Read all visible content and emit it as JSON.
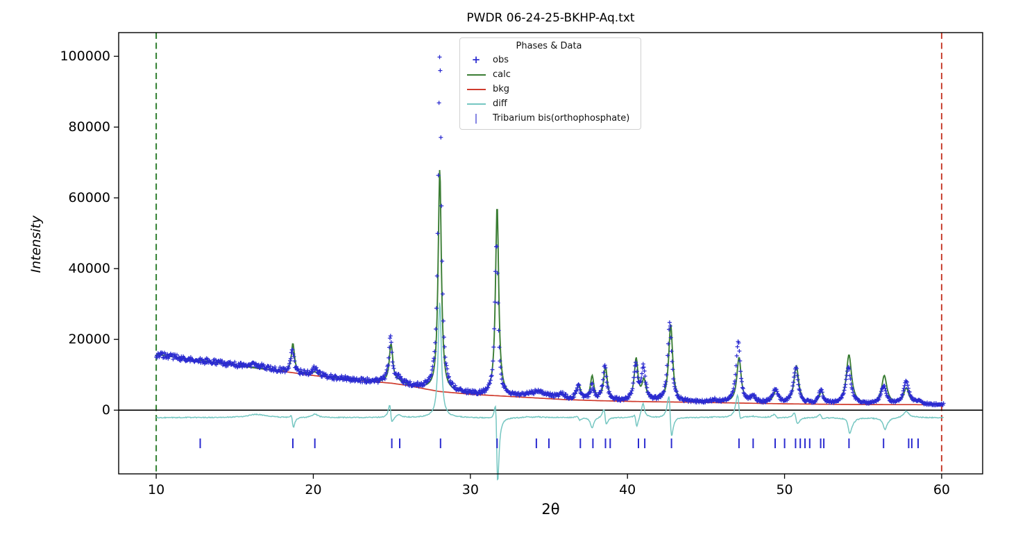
{
  "window": {
    "background": "#ffffff"
  },
  "chart_data": {
    "type": "line",
    "subtype": "powder-diffraction-rietveld",
    "title": "PWDR 06-24-25-BKHP-Aq.txt",
    "xlabel": "2θ",
    "ylabel": "Intensity",
    "xlim": [
      7.61,
      62.61
    ],
    "ylim": [
      -18000,
      106700
    ],
    "x_ticks": [
      10,
      20,
      30,
      40,
      50,
      60
    ],
    "y_ticks": [
      0,
      20000,
      40000,
      60000,
      80000,
      100000
    ],
    "grid": false,
    "data_range": [
      10.0,
      60.15
    ],
    "limit_lines": {
      "lower": 10.0,
      "upper": 60.0
    },
    "diff_offset": -2100,
    "zero_line": 0,
    "series": [
      {
        "name": "obs",
        "style": "plus-markers",
        "color": "#2b2bd0"
      },
      {
        "name": "calc",
        "style": "line",
        "color": "#3a7d33"
      },
      {
        "name": "bkg",
        "style": "line",
        "color": "#cf3b2d"
      },
      {
        "name": "diff",
        "style": "line",
        "color": "#74c6c1"
      }
    ],
    "background_points": [
      [
        10,
        15800
      ],
      [
        11,
        15100
      ],
      [
        12,
        14400
      ],
      [
        13,
        13900
      ],
      [
        14,
        13300
      ],
      [
        15,
        12700
      ],
      [
        16,
        12100
      ],
      [
        17,
        11500
      ],
      [
        18,
        11000
      ],
      [
        19,
        10400
      ],
      [
        20,
        9800
      ],
      [
        21,
        9300
      ],
      [
        22,
        8800
      ],
      [
        23,
        8400
      ],
      [
        24,
        8000
      ],
      [
        25,
        7600
      ],
      [
        26,
        7000
      ],
      [
        27,
        6100
      ],
      [
        28,
        5300
      ],
      [
        29,
        4900
      ],
      [
        30,
        4500
      ],
      [
        31,
        4250
      ],
      [
        32,
        4000
      ],
      [
        33,
        3750
      ],
      [
        34,
        3500
      ],
      [
        35,
        3250
      ],
      [
        36,
        3000
      ],
      [
        37,
        2850
      ],
      [
        38,
        2700
      ],
      [
        39,
        2600
      ],
      [
        40,
        2500
      ],
      [
        41,
        2420
      ],
      [
        42,
        2350
      ],
      [
        43,
        2300
      ],
      [
        44,
        2250
      ],
      [
        45,
        2170
      ],
      [
        46,
        2100
      ],
      [
        47,
        2020
      ],
      [
        48,
        1950
      ],
      [
        49,
        1870
      ],
      [
        50,
        1800
      ],
      [
        51,
        1750
      ],
      [
        52,
        1700
      ],
      [
        53,
        1660
      ],
      [
        54,
        1620
      ],
      [
        55,
        1600
      ],
      [
        56,
        1580
      ],
      [
        57,
        1570
      ],
      [
        58,
        1560
      ],
      [
        59,
        1555
      ],
      [
        60.2,
        1550
      ]
    ],
    "peaks": [
      {
        "pos": 16.4,
        "w": 0.7,
        "calc": 0,
        "obs": 900,
        "shift": 0
      },
      {
        "pos": 18.7,
        "w": 0.12,
        "calc": 8300,
        "obs": 6600,
        "shift": -0.04
      },
      {
        "pos": 20.1,
        "w": 0.22,
        "calc": 1000,
        "obs": 2000,
        "shift": 0
      },
      {
        "pos": 24.95,
        "w": 0.13,
        "calc": 11100,
        "obs": 12500,
        "shift": -0.04
      },
      {
        "pos": 25.45,
        "w": 0.2,
        "calc": 600,
        "obs": 1300,
        "shift": 0
      },
      {
        "pos": 28.05,
        "w": 0.12,
        "calc": 62900,
        "obs": 95700,
        "shift": 0
      },
      {
        "pos": 31.7,
        "w": 0.12,
        "calc": 53900,
        "obs": 43600,
        "shift": -0.04
      },
      {
        "pos": 33.6,
        "w": 0.3,
        "calc": 700,
        "obs": 900,
        "shift": 0
      },
      {
        "pos": 34.3,
        "w": 0.3,
        "calc": 1500,
        "obs": 1700,
        "shift": 0
      },
      {
        "pos": 35.0,
        "w": 0.3,
        "calc": 800,
        "obs": 800,
        "shift": 0
      },
      {
        "pos": 35.85,
        "w": 0.25,
        "calc": 1200,
        "obs": 1300,
        "shift": 0
      },
      {
        "pos": 36.9,
        "w": 0.15,
        "calc": 3900,
        "obs": 3700,
        "shift": -0.03
      },
      {
        "pos": 37.75,
        "w": 0.13,
        "calc": 6600,
        "obs": 3700,
        "shift": 0
      },
      {
        "pos": 38.6,
        "w": 0.14,
        "calc": 9300,
        "obs": 9700,
        "shift": -0.05
      },
      {
        "pos": 40.55,
        "w": 0.14,
        "calc": 11800,
        "obs": 10100,
        "shift": -0.03
      },
      {
        "pos": 41.05,
        "w": 0.15,
        "calc": 5600,
        "obs": 9400,
        "shift": -0.03
      },
      {
        "pos": 42.75,
        "w": 0.15,
        "calc": 21800,
        "obs": 22400,
        "shift": -0.06
      },
      {
        "pos": 45.5,
        "w": 0.3,
        "calc": 500,
        "obs": 600,
        "shift": 0
      },
      {
        "pos": 47.1,
        "w": 0.16,
        "calc": 12800,
        "obs": 17000,
        "shift": -0.05
      },
      {
        "pos": 48.0,
        "w": 0.18,
        "calc": 1500,
        "obs": 1800,
        "shift": 0
      },
      {
        "pos": 49.45,
        "w": 0.2,
        "calc": 3300,
        "obs": 3800,
        "shift": -0.04
      },
      {
        "pos": 50.75,
        "w": 0.18,
        "calc": 10500,
        "obs": 10100,
        "shift": -0.04
      },
      {
        "pos": 52.35,
        "w": 0.16,
        "calc": 3300,
        "obs": 3800,
        "shift": -0.04
      },
      {
        "pos": 54.1,
        "w": 0.2,
        "calc": 13900,
        "obs": 10400,
        "shift": -0.04
      },
      {
        "pos": 56.35,
        "w": 0.2,
        "calc": 8000,
        "obs": 5100,
        "shift": -0.04
      },
      {
        "pos": 57.75,
        "w": 0.2,
        "calc": 4500,
        "obs": 6400,
        "shift": 0
      },
      {
        "pos": 58.5,
        "w": 0.2,
        "calc": 700,
        "obs": 800,
        "shift": 0
      }
    ],
    "reflection_ticks": {
      "phase": "Tribarium bis(orthophosphate)",
      "color": "#2b2bd0",
      "positions": [
        12.8,
        18.7,
        20.1,
        25.0,
        25.5,
        28.1,
        31.7,
        34.2,
        35.0,
        37.0,
        37.8,
        38.6,
        38.9,
        40.7,
        41.1,
        42.8,
        47.1,
        48.0,
        49.4,
        50.0,
        50.7,
        51.0,
        51.3,
        51.6,
        52.3,
        52.5,
        54.1,
        56.3,
        57.9,
        58.1,
        58.5
      ]
    },
    "legend": {
      "title": "Phases & Data",
      "position": "upper center-left",
      "items": [
        {
          "label": "obs",
          "symbol": "plus",
          "glyph": "+",
          "color": "#2b2bd0"
        },
        {
          "label": "calc",
          "symbol": "line",
          "color": "#3a7d33"
        },
        {
          "label": "bkg",
          "symbol": "line",
          "color": "#cf3b2d"
        },
        {
          "label": "diff",
          "symbol": "line",
          "color": "#74c6c1"
        },
        {
          "label": "Tribarium bis(orthophosphate)",
          "symbol": "bar",
          "glyph": "|",
          "color": "#2b2bd0"
        }
      ]
    },
    "colors": {
      "obs": "#2b2bd0",
      "calc": "#3a7d33",
      "bkg": "#cf3b2d",
      "diff": "#74c6c1",
      "lower_limit": "#2e7d2e",
      "upper_limit": "#c8402f",
      "axes": "#000000"
    }
  }
}
